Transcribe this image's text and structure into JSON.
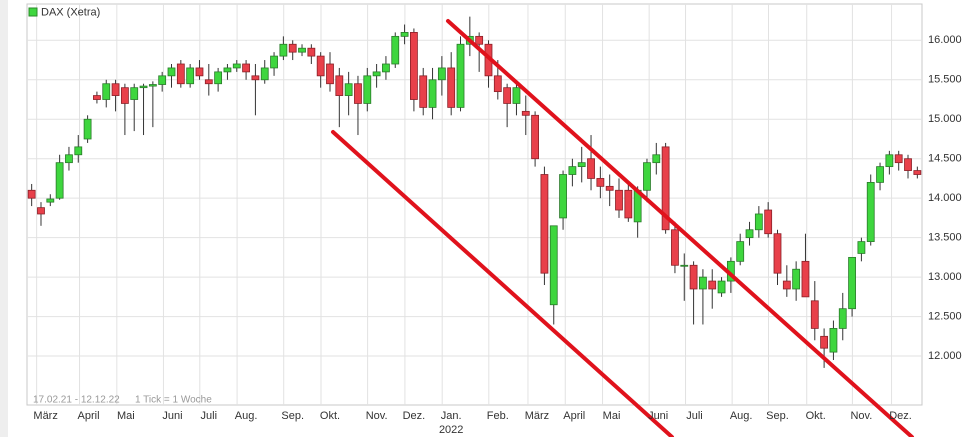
{
  "chart_data": {
    "type": "candlestick",
    "name": "DAX (Xetra)",
    "period": "17.02.21 - 12.12.22",
    "note": "1 Tick = 1 Woche",
    "up_color": "#3ed63e",
    "down_color": "#e8404a",
    "grid": true,
    "xlim": [
      -0.5,
      95.5
    ],
    "xticks": [
      {
        "value": 1.5,
        "label": "März"
      },
      {
        "value": 6.1,
        "label": "April"
      },
      {
        "value": 10.1,
        "label": "Mai"
      },
      {
        "value": 15.1,
        "label": "Juni"
      },
      {
        "value": 19,
        "label": "Juli"
      },
      {
        "value": 23,
        "label": "Aug."
      },
      {
        "value": 28,
        "label": "Sep."
      },
      {
        "value": 32,
        "label": "Okt."
      },
      {
        "value": 37,
        "label": "Nov."
      },
      {
        "value": 41,
        "label": "Dez."
      },
      {
        "value": 45,
        "label": "Jan."
      },
      {
        "value": 50,
        "label": "Feb."
      },
      {
        "value": 54.2,
        "label": "März"
      },
      {
        "value": 58.2,
        "label": "April"
      },
      {
        "value": 62.2,
        "label": "Mai"
      },
      {
        "value": 67.2,
        "label": "Juni"
      },
      {
        "value": 71.1,
        "label": "Juli"
      },
      {
        "value": 76.1,
        "label": "Aug."
      },
      {
        "value": 80,
        "label": "Sep."
      },
      {
        "value": 84.1,
        "label": "Okt."
      },
      {
        "value": 89,
        "label": "Nov."
      },
      {
        "value": 93.2,
        "label": "Dez."
      }
    ],
    "year_label": {
      "value": 45,
      "label": "2022"
    },
    "ylim": [
      11380,
      16460
    ],
    "yticks": [
      {
        "value": 12000,
        "label": "12.000"
      },
      {
        "value": 12500,
        "label": "12.500"
      },
      {
        "value": 13000,
        "label": "13.000"
      },
      {
        "value": 13500,
        "label": "13.500"
      },
      {
        "value": 14000,
        "label": "14.000"
      },
      {
        "value": 14500,
        "label": "14.500"
      },
      {
        "value": 15000,
        "label": "15.000"
      },
      {
        "value": 15500,
        "label": "15.500"
      },
      {
        "value": 16000,
        "label": "16.000"
      }
    ],
    "open": [
      14100,
      13880,
      13950,
      14000,
      14450,
      14550,
      14750,
      15300,
      15250,
      15450,
      15400,
      15250,
      15400,
      15420,
      15440,
      15550,
      15700,
      15450,
      15650,
      15500,
      15450,
      15600,
      15650,
      15700,
      15550,
      15500,
      15650,
      15800,
      15950,
      15850,
      15900,
      15800,
      15700,
      15550,
      15300,
      15450,
      15200,
      15550,
      15600,
      15700,
      16050,
      16100,
      15550,
      15150,
      15500,
      15650,
      15150,
      15950,
      16050,
      15950,
      15550,
      15400,
      15200,
      15100,
      15050,
      14300,
      12650,
      13750,
      14300,
      14400,
      14500,
      14250,
      14150,
      14100,
      14100,
      13700,
      14100,
      14450,
      14650,
      13600,
      13150,
      13150,
      12850,
      12950,
      12800,
      12950,
      13200,
      13500,
      13600,
      13850,
      13550,
      12950,
      12850,
      13200,
      12700,
      12250,
      12050,
      12350,
      12600,
      13300,
      13450,
      14200,
      14400,
      14550,
      14500,
      14350
    ],
    "high": [
      14180,
      13950,
      14050,
      14550,
      14650,
      14800,
      15050,
      15350,
      15500,
      15500,
      15450,
      15450,
      15450,
      15480,
      15600,
      15700,
      15750,
      15700,
      15750,
      15700,
      15650,
      15700,
      15750,
      15750,
      15700,
      15750,
      15850,
      16050,
      16000,
      15950,
      15950,
      15850,
      15850,
      15650,
      15600,
      15550,
      15650,
      15700,
      15800,
      16100,
      16200,
      16150,
      15650,
      15650,
      15800,
      15850,
      16050,
      16300,
      16100,
      16000,
      15750,
      15450,
      15450,
      15300,
      15100,
      14400,
      13650,
      14350,
      14500,
      14650,
      14800,
      14400,
      14300,
      14250,
      14200,
      14150,
      14500,
      14700,
      14700,
      13700,
      13300,
      13200,
      13100,
      13100,
      13000,
      13250,
      13550,
      13700,
      13900,
      13950,
      13600,
      13150,
      13200,
      13550,
      12950,
      12350,
      12450,
      12800,
      13250,
      13500,
      14300,
      14450,
      14600,
      14600,
      14550,
      14400
    ],
    "low": [
      13900,
      13650,
      13900,
      13980,
      14350,
      14450,
      14700,
      15200,
      15150,
      15100,
      14800,
      14850,
      14800,
      14900,
      15350,
      15400,
      15400,
      15400,
      15500,
      15300,
      15350,
      15500,
      15600,
      15500,
      15050,
      15450,
      15550,
      15750,
      15750,
      15800,
      15700,
      15400,
      15350,
      14900,
      15050,
      14800,
      15100,
      15400,
      15500,
      15650,
      15950,
      15100,
      15050,
      15000,
      15300,
      15050,
      15100,
      15800,
      15600,
      15400,
      15250,
      14900,
      15050,
      14800,
      14400,
      12900,
      12400,
      13600,
      14150,
      14200,
      14100,
      14000,
      13900,
      13750,
      13700,
      13500,
      13950,
      14300,
      13550,
      13050,
      12700,
      12400,
      12400,
      12600,
      12750,
      12800,
      13150,
      13400,
      13500,
      13500,
      12900,
      12750,
      12700,
      12750,
      12200,
      11850,
      11950,
      12200,
      12500,
      13200,
      13400,
      14100,
      14300,
      14350,
      14250,
      14250
    ],
    "close": [
      14000,
      13800,
      13990,
      14450,
      14550,
      14650,
      15000,
      15250,
      15450,
      15300,
      15200,
      15400,
      15420,
      15440,
      15550,
      15650,
      15450,
      15650,
      15550,
      15450,
      15600,
      15650,
      15700,
      15600,
      15500,
      15650,
      15800,
      15950,
      15850,
      15900,
      15800,
      15550,
      15450,
      15300,
      15450,
      15200,
      15550,
      15600,
      15700,
      16050,
      16100,
      15250,
      15150,
      15500,
      15650,
      15150,
      15950,
      16050,
      15950,
      15550,
      15350,
      15200,
      15400,
      15050,
      14500,
      13050,
      13650,
      14300,
      14400,
      14450,
      14250,
      14150,
      14100,
      13850,
      13750,
      14100,
      14450,
      14550,
      13600,
      13150,
      13150,
      12850,
      13000,
      12850,
      12950,
      13200,
      13450,
      13600,
      13800,
      13550,
      13050,
      12850,
      13100,
      12750,
      12350,
      12100,
      12350,
      12600,
      13250,
      13450,
      14200,
      14400,
      14550,
      14450,
      14350,
      14300
    ]
  }
}
